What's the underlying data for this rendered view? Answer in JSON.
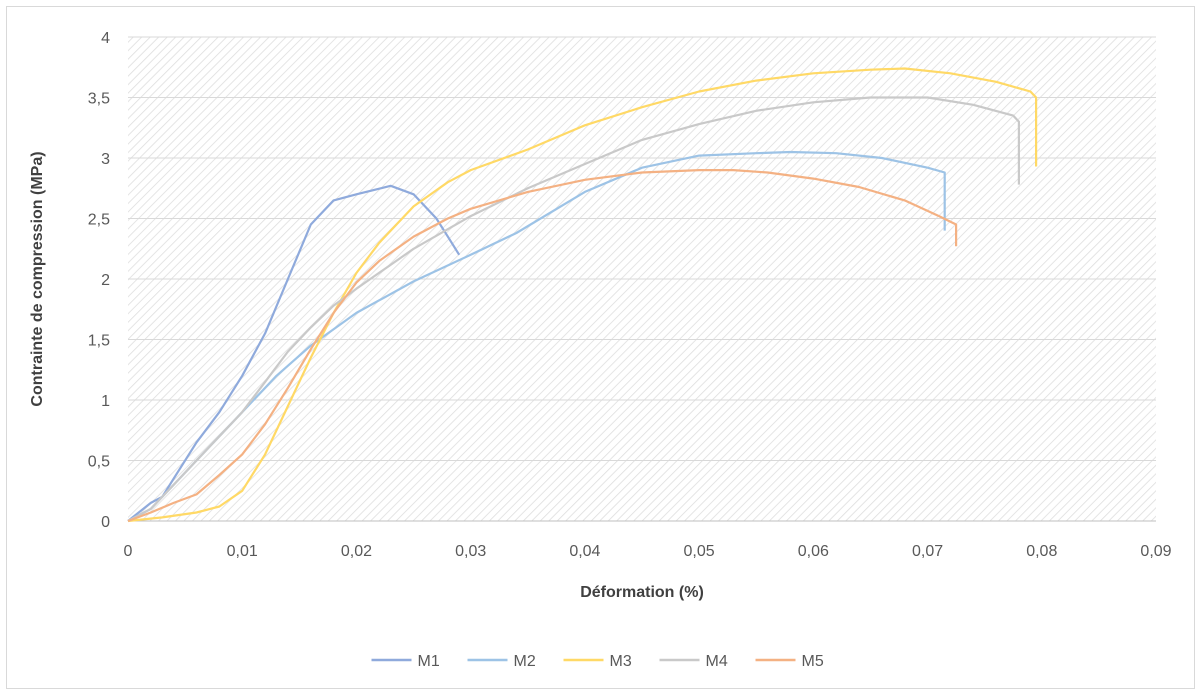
{
  "chart_data": {
    "type": "line",
    "title": "",
    "xlabel": "Déformation (%)",
    "ylabel": "Contrainte de compression (MPa)",
    "xlim": [
      0,
      0.09
    ],
    "ylim": [
      0,
      4
    ],
    "x_ticks": [
      "0",
      "0,01",
      "0,02",
      "0,03",
      "0,04",
      "0,05",
      "0,06",
      "0,07",
      "0,08",
      "0,09"
    ],
    "y_ticks": [
      "0",
      "0,5",
      "1",
      "1,5",
      "2",
      "2,5",
      "3",
      "3,5",
      "4"
    ],
    "grid": true,
    "legend_position": "bottom",
    "series": [
      {
        "name": "M1",
        "color": "#8faadc",
        "points": [
          [
            0,
            0
          ],
          [
            0.002,
            0.15
          ],
          [
            0.003,
            0.2
          ],
          [
            0.004,
            0.35
          ],
          [
            0.006,
            0.65
          ],
          [
            0.008,
            0.9
          ],
          [
            0.01,
            1.2
          ],
          [
            0.012,
            1.55
          ],
          [
            0.014,
            2.0
          ],
          [
            0.016,
            2.45
          ],
          [
            0.018,
            2.65
          ],
          [
            0.02,
            2.7
          ],
          [
            0.023,
            2.77
          ],
          [
            0.025,
            2.7
          ],
          [
            0.027,
            2.5
          ],
          [
            0.028,
            2.35
          ],
          [
            0.029,
            2.2
          ]
        ]
      },
      {
        "name": "M2",
        "color": "#9dc3e6",
        "points": [
          [
            0,
            0
          ],
          [
            0.002,
            0.1
          ],
          [
            0.004,
            0.3
          ],
          [
            0.006,
            0.5
          ],
          [
            0.008,
            0.7
          ],
          [
            0.01,
            0.9
          ],
          [
            0.013,
            1.2
          ],
          [
            0.016,
            1.45
          ],
          [
            0.02,
            1.72
          ],
          [
            0.025,
            1.98
          ],
          [
            0.03,
            2.2
          ],
          [
            0.034,
            2.38
          ],
          [
            0.04,
            2.72
          ],
          [
            0.045,
            2.92
          ],
          [
            0.05,
            3.02
          ],
          [
            0.055,
            3.04
          ],
          [
            0.058,
            3.05
          ],
          [
            0.062,
            3.04
          ],
          [
            0.066,
            3.0
          ],
          [
            0.07,
            2.92
          ],
          [
            0.0715,
            2.88
          ],
          [
            0.0715,
            2.4
          ]
        ]
      },
      {
        "name": "M3",
        "color": "#ffd966",
        "points": [
          [
            0,
            0
          ],
          [
            0.003,
            0.03
          ],
          [
            0.006,
            0.07
          ],
          [
            0.008,
            0.12
          ],
          [
            0.01,
            0.25
          ],
          [
            0.012,
            0.55
          ],
          [
            0.014,
            0.95
          ],
          [
            0.016,
            1.35
          ],
          [
            0.018,
            1.72
          ],
          [
            0.02,
            2.05
          ],
          [
            0.022,
            2.3
          ],
          [
            0.025,
            2.6
          ],
          [
            0.028,
            2.8
          ],
          [
            0.03,
            2.9
          ],
          [
            0.035,
            3.07
          ],
          [
            0.04,
            3.27
          ],
          [
            0.045,
            3.42
          ],
          [
            0.05,
            3.55
          ],
          [
            0.055,
            3.64
          ],
          [
            0.06,
            3.7
          ],
          [
            0.065,
            3.73
          ],
          [
            0.068,
            3.74
          ],
          [
            0.072,
            3.7
          ],
          [
            0.076,
            3.63
          ],
          [
            0.079,
            3.55
          ],
          [
            0.0795,
            3.5
          ],
          [
            0.0795,
            2.93
          ]
        ]
      },
      {
        "name": "M4",
        "color": "#c9c9c9",
        "points": [
          [
            0,
            0
          ],
          [
            0.002,
            0.1
          ],
          [
            0.004,
            0.3
          ],
          [
            0.006,
            0.5
          ],
          [
            0.008,
            0.7
          ],
          [
            0.01,
            0.9
          ],
          [
            0.012,
            1.15
          ],
          [
            0.014,
            1.4
          ],
          [
            0.016,
            1.6
          ],
          [
            0.018,
            1.78
          ],
          [
            0.02,
            1.92
          ],
          [
            0.025,
            2.25
          ],
          [
            0.03,
            2.52
          ],
          [
            0.035,
            2.75
          ],
          [
            0.04,
            2.95
          ],
          [
            0.045,
            3.15
          ],
          [
            0.05,
            3.28
          ],
          [
            0.055,
            3.39
          ],
          [
            0.06,
            3.46
          ],
          [
            0.065,
            3.5
          ],
          [
            0.07,
            3.5
          ],
          [
            0.074,
            3.44
          ],
          [
            0.0775,
            3.35
          ],
          [
            0.078,
            3.3
          ],
          [
            0.078,
            2.78
          ]
        ]
      },
      {
        "name": "M5",
        "color": "#f4b183",
        "points": [
          [
            0,
            0
          ],
          [
            0.002,
            0.07
          ],
          [
            0.004,
            0.15
          ],
          [
            0.006,
            0.22
          ],
          [
            0.008,
            0.38
          ],
          [
            0.01,
            0.55
          ],
          [
            0.012,
            0.8
          ],
          [
            0.014,
            1.1
          ],
          [
            0.016,
            1.42
          ],
          [
            0.018,
            1.72
          ],
          [
            0.02,
            1.97
          ],
          [
            0.022,
            2.15
          ],
          [
            0.025,
            2.35
          ],
          [
            0.028,
            2.5
          ],
          [
            0.03,
            2.58
          ],
          [
            0.035,
            2.72
          ],
          [
            0.04,
            2.82
          ],
          [
            0.045,
            2.88
          ],
          [
            0.05,
            2.9
          ],
          [
            0.053,
            2.9
          ],
          [
            0.056,
            2.88
          ],
          [
            0.06,
            2.83
          ],
          [
            0.064,
            2.76
          ],
          [
            0.068,
            2.65
          ],
          [
            0.071,
            2.52
          ],
          [
            0.0725,
            2.45
          ],
          [
            0.0725,
            2.27
          ]
        ]
      }
    ]
  }
}
